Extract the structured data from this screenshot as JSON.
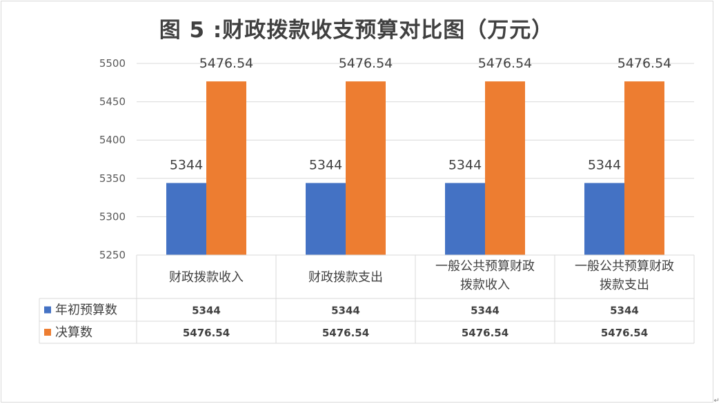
{
  "chart_data": {
    "type": "bar",
    "title": "图 5 :财政拨款收支预算对比图（万元）",
    "categories": [
      [
        "财政拨款收入"
      ],
      [
        "财政拨款支出"
      ],
      [
        "一般公共预算财政",
        "拨款收入"
      ],
      [
        "一般公共预算财政",
        "拨款支出"
      ]
    ],
    "series": [
      {
        "name": "年初预算数",
        "color": "#4472C4",
        "values": [
          5344,
          5344,
          5344,
          5344
        ],
        "labels": [
          "5344",
          "5344",
          "5344",
          "5344"
        ]
      },
      {
        "name": "决算数",
        "color": "#ED7D31",
        "values": [
          5476.54,
          5476.54,
          5476.54,
          5476.54
        ],
        "labels": [
          "5476.54",
          "5476.54",
          "5476.54",
          "5476.54"
        ]
      }
    ],
    "ylim": [
      5250,
      5500
    ],
    "yticks": [
      "5250",
      "5300",
      "5350",
      "5400",
      "5450",
      "5500"
    ],
    "grid": true,
    "legend": "data-table"
  },
  "corner_mark": "↵"
}
